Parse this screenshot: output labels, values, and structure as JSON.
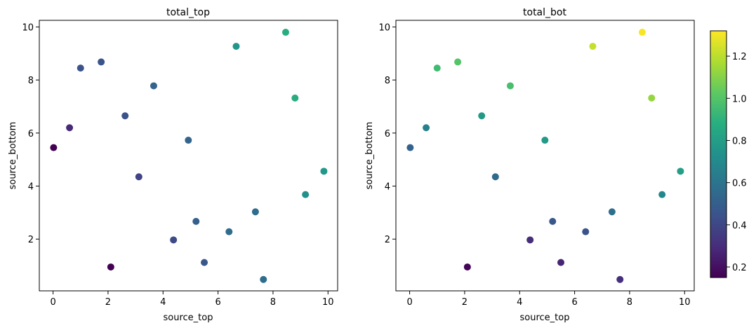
{
  "chart_data": [
    {
      "type": "scatter",
      "title": "total_top",
      "xlabel": "source_top",
      "ylabel": "source_bottom",
      "xlim": [
        -0.5,
        10.35
      ],
      "ylim": [
        0.05,
        10.25
      ],
      "xticks": [
        "0",
        "2",
        "4",
        "6",
        "8",
        "10"
      ],
      "yticks": [
        "2",
        "4",
        "6",
        "8",
        "10"
      ],
      "colormap": "viridis",
      "points": [
        {
          "x": 0.02,
          "y": 5.45,
          "c": 0.0
        },
        {
          "x": 0.6,
          "y": 6.2,
          "c": 0.12
        },
        {
          "x": 1.0,
          "y": 8.45,
          "c": 0.25
        },
        {
          "x": 1.75,
          "y": 8.68,
          "c": 0.26
        },
        {
          "x": 2.1,
          "y": 0.95,
          "c": 0.0
        },
        {
          "x": 2.62,
          "y": 6.65,
          "c": 0.25
        },
        {
          "x": 3.12,
          "y": 4.35,
          "c": 0.2
        },
        {
          "x": 3.66,
          "y": 7.78,
          "c": 0.32
        },
        {
          "x": 4.38,
          "y": 1.97,
          "c": 0.22
        },
        {
          "x": 4.92,
          "y": 5.73,
          "c": 0.32
        },
        {
          "x": 5.2,
          "y": 2.67,
          "c": 0.3
        },
        {
          "x": 5.5,
          "y": 1.12,
          "c": 0.27
        },
        {
          "x": 6.4,
          "y": 2.28,
          "c": 0.35
        },
        {
          "x": 6.66,
          "y": 9.27,
          "c": 0.52
        },
        {
          "x": 7.36,
          "y": 3.03,
          "c": 0.35
        },
        {
          "x": 7.65,
          "y": 0.48,
          "c": 0.35
        },
        {
          "x": 8.46,
          "y": 9.8,
          "c": 0.62
        },
        {
          "x": 8.8,
          "y": 7.32,
          "c": 0.62
        },
        {
          "x": 9.18,
          "y": 3.68,
          "c": 0.5
        },
        {
          "x": 9.85,
          "y": 4.56,
          "c": 0.53
        }
      ]
    },
    {
      "type": "scatter",
      "title": "total_bot",
      "xlabel": "source_top",
      "ylabel": "source_bottom",
      "xlim": [
        -0.5,
        10.35
      ],
      "ylim": [
        0.05,
        10.25
      ],
      "xticks": [
        "0",
        "2",
        "4",
        "6",
        "8",
        "10"
      ],
      "yticks": [
        "2",
        "4",
        "6",
        "8",
        "10"
      ],
      "colormap": "viridis",
      "colorbar": {
        "min": 0.15,
        "max": 1.32,
        "ticks": [
          "0.2",
          "0.4",
          "0.6",
          "0.8",
          "1.0",
          "1.2"
        ],
        "tick_values": [
          0.2,
          0.4,
          0.6,
          0.8,
          1.0,
          1.2
        ]
      },
      "points": [
        {
          "x": 0.02,
          "y": 5.45,
          "v": 0.52
        },
        {
          "x": 0.6,
          "y": 6.2,
          "v": 0.66
        },
        {
          "x": 1.0,
          "y": 8.45,
          "v": 0.95
        },
        {
          "x": 1.75,
          "y": 8.68,
          "v": 1.0
        },
        {
          "x": 2.1,
          "y": 0.95,
          "v": 0.16
        },
        {
          "x": 2.62,
          "y": 6.65,
          "v": 0.78
        },
        {
          "x": 3.12,
          "y": 4.35,
          "v": 0.55
        },
        {
          "x": 3.66,
          "y": 7.78,
          "v": 0.97
        },
        {
          "x": 4.38,
          "y": 1.97,
          "v": 0.3
        },
        {
          "x": 4.92,
          "y": 5.73,
          "v": 0.78
        },
        {
          "x": 5.2,
          "y": 2.67,
          "v": 0.47
        },
        {
          "x": 5.5,
          "y": 1.12,
          "v": 0.27
        },
        {
          "x": 6.4,
          "y": 2.28,
          "v": 0.45
        },
        {
          "x": 6.66,
          "y": 9.27,
          "v": 1.22
        },
        {
          "x": 7.36,
          "y": 3.03,
          "v": 0.58
        },
        {
          "x": 7.65,
          "y": 0.48,
          "v": 0.31
        },
        {
          "x": 8.46,
          "y": 9.8,
          "v": 1.31
        },
        {
          "x": 8.8,
          "y": 7.32,
          "v": 1.13
        },
        {
          "x": 9.18,
          "y": 3.68,
          "v": 0.69
        },
        {
          "x": 9.85,
          "y": 4.56,
          "v": 0.8
        }
      ]
    }
  ]
}
